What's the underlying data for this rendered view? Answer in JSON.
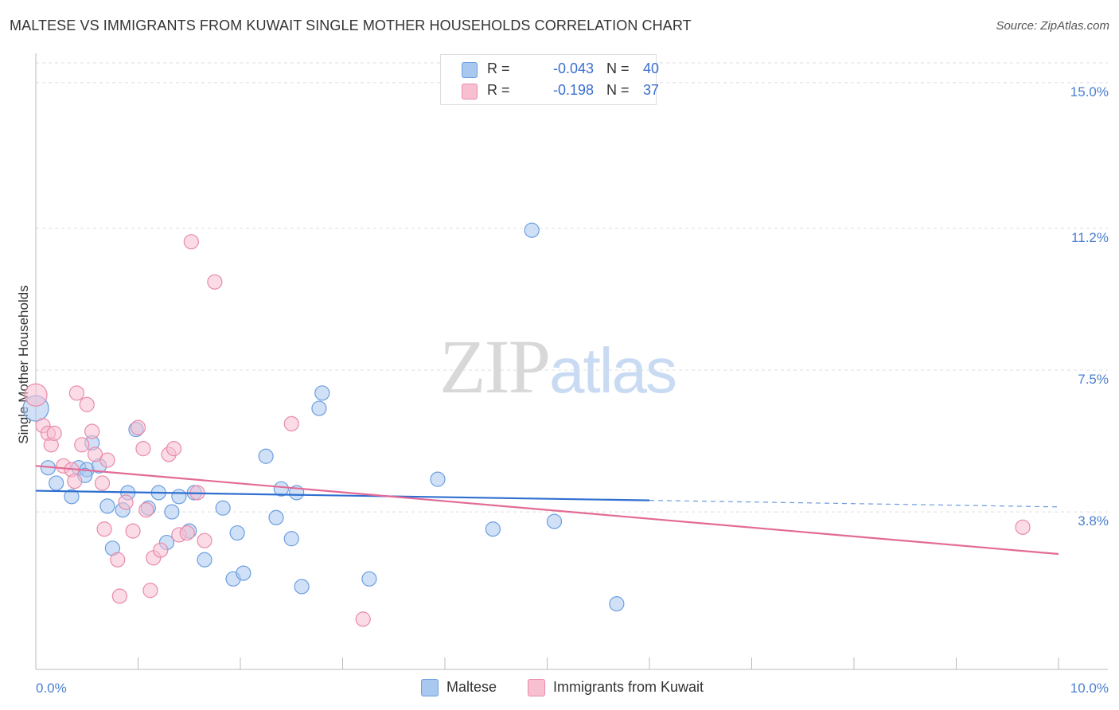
{
  "title": "MALTESE VS IMMIGRANTS FROM KUWAIT SINGLE MOTHER HOUSEHOLDS CORRELATION CHART",
  "source": "Source: ZipAtlas.com",
  "watermark": {
    "part1": "ZIP",
    "part2": "atlas"
  },
  "stats": [
    {
      "r_label": "R =",
      "r_value": "-0.043",
      "n_label": "N =",
      "n_value": "40",
      "color": "#a9c8f0",
      "border": "#6b9ee0"
    },
    {
      "r_label": "R =",
      "r_value": "-0.198",
      "n_label": "N =",
      "n_value": "37",
      "color": "#f8bfd1",
      "border": "#e98aa9"
    }
  ],
  "legend": [
    {
      "label": "Maltese",
      "color": "#a9c8f0",
      "border": "#6b9ee0"
    },
    {
      "label": "Immigrants from Kuwait",
      "color": "#f8bfd1",
      "border": "#e98aa9"
    }
  ],
  "chart_data": {
    "type": "scatter",
    "title": "MALTESE VS IMMIGRANTS FROM KUWAIT SINGLE MOTHER HOUSEHOLDS CORRELATION CHART",
    "xlabel": "",
    "ylabel": "Single Mother Households",
    "xlim": [
      0,
      10
    ],
    "ylim": [
      0,
      15.6
    ],
    "x_tick_labels": [
      {
        "value": 0,
        "label": "0.0%"
      },
      {
        "value": 10,
        "label": "10.0%"
      }
    ],
    "y_ticks": [
      {
        "value": 3.8,
        "label": "3.8%"
      },
      {
        "value": 7.5,
        "label": "7.5%"
      },
      {
        "value": 11.2,
        "label": "11.2%"
      },
      {
        "value": 15.0,
        "label": "15.0%"
      }
    ],
    "grid": "horizontal dashed",
    "series": [
      {
        "name": "Maltese",
        "color": "#a9c8f0",
        "edge": "#6b9ee0",
        "line_color": "#2f6fd0",
        "trend": {
          "x0": 0,
          "y0": 4.35,
          "x1": 6,
          "y1": 4.1,
          "dash_to_x": 10,
          "dash_to_y": 3.93
        },
        "points": [
          [
            0.0,
            6.5,
            16
          ],
          [
            0.12,
            4.95,
            9
          ],
          [
            0.2,
            4.55,
            9
          ],
          [
            0.35,
            4.2,
            9
          ],
          [
            0.42,
            4.95,
            9
          ],
          [
            0.5,
            4.9,
            9
          ],
          [
            0.48,
            4.75,
            9
          ],
          [
            0.55,
            5.6,
            9
          ],
          [
            0.62,
            5.0,
            9
          ],
          [
            0.7,
            3.95,
            9
          ],
          [
            0.75,
            2.85,
            9
          ],
          [
            0.85,
            3.85,
            9
          ],
          [
            0.9,
            4.3,
            9
          ],
          [
            0.98,
            5.95,
            9
          ],
          [
            1.1,
            3.9,
            9
          ],
          [
            1.2,
            4.3,
            9
          ],
          [
            1.28,
            3.0,
            9
          ],
          [
            1.33,
            3.8,
            9
          ],
          [
            1.4,
            4.2,
            9
          ],
          [
            1.5,
            3.3,
            9
          ],
          [
            1.55,
            4.3,
            9
          ],
          [
            1.65,
            2.55,
            9
          ],
          [
            1.83,
            3.9,
            9
          ],
          [
            1.93,
            2.05,
            9
          ],
          [
            1.97,
            3.25,
            9
          ],
          [
            2.03,
            2.2,
            9
          ],
          [
            2.25,
            5.25,
            9
          ],
          [
            2.4,
            4.4,
            9
          ],
          [
            2.35,
            3.65,
            9
          ],
          [
            2.5,
            3.1,
            9
          ],
          [
            2.55,
            4.3,
            9
          ],
          [
            2.6,
            1.85,
            9
          ],
          [
            2.77,
            6.5,
            9
          ],
          [
            2.8,
            6.9,
            9
          ],
          [
            3.26,
            2.05,
            9
          ],
          [
            3.93,
            4.65,
            9
          ],
          [
            4.47,
            3.35,
            9
          ],
          [
            4.85,
            11.15,
            9
          ],
          [
            5.07,
            3.55,
            9
          ],
          [
            5.68,
            1.4,
            9
          ]
        ]
      },
      {
        "name": "Immigrants from Kuwait",
        "color": "#f8bfd1",
        "edge": "#e98aa9",
        "line_color": "#e36a96",
        "trend": {
          "x0": 0,
          "y0": 5.0,
          "x1": 10,
          "y1": 2.7
        },
        "points": [
          [
            0.0,
            6.85,
            14
          ],
          [
            0.07,
            6.05,
            9
          ],
          [
            0.12,
            5.85,
            9
          ],
          [
            0.15,
            5.55,
            9
          ],
          [
            0.18,
            5.85,
            9
          ],
          [
            0.27,
            5.0,
            9
          ],
          [
            0.35,
            4.9,
            9
          ],
          [
            0.38,
            4.6,
            9
          ],
          [
            0.4,
            6.9,
            9
          ],
          [
            0.45,
            5.55,
            9
          ],
          [
            0.5,
            6.6,
            9
          ],
          [
            0.55,
            5.9,
            9
          ],
          [
            0.58,
            5.3,
            9
          ],
          [
            0.65,
            4.55,
            9
          ],
          [
            0.67,
            3.35,
            9
          ],
          [
            0.7,
            5.15,
            9
          ],
          [
            0.8,
            2.55,
            9
          ],
          [
            0.82,
            1.6,
            9
          ],
          [
            0.88,
            4.05,
            9
          ],
          [
            0.95,
            3.3,
            9
          ],
          [
            1.0,
            6.0,
            9
          ],
          [
            1.05,
            5.45,
            9
          ],
          [
            1.08,
            3.85,
            9
          ],
          [
            1.12,
            1.75,
            9
          ],
          [
            1.15,
            2.6,
            9
          ],
          [
            1.22,
            2.8,
            9
          ],
          [
            1.3,
            5.3,
            9
          ],
          [
            1.35,
            5.45,
            9
          ],
          [
            1.4,
            3.2,
            9
          ],
          [
            1.48,
            3.25,
            9
          ],
          [
            1.52,
            10.85,
            9
          ],
          [
            1.58,
            4.3,
            9
          ],
          [
            1.65,
            3.05,
            9
          ],
          [
            1.75,
            9.8,
            9
          ],
          [
            2.5,
            6.1,
            9
          ],
          [
            3.2,
            1.0,
            9
          ],
          [
            9.65,
            3.4,
            9
          ]
        ]
      }
    ]
  }
}
